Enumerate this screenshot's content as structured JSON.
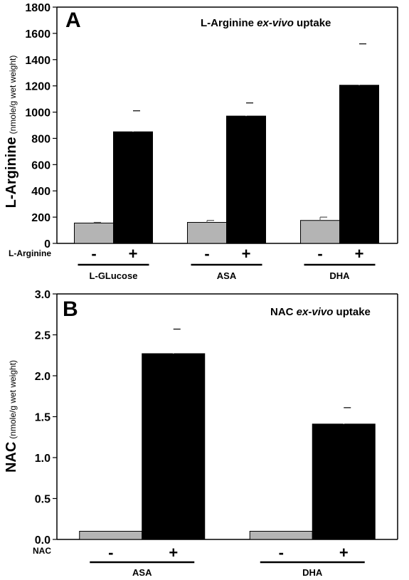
{
  "colors": {
    "control_bar": "#b4b4b4",
    "treated_bar": "#000000",
    "axis": "#000000"
  },
  "chart_data": [
    {
      "type": "bar",
      "panel_label": "A",
      "title_parts": {
        "lead": "L-Arginine ",
        "italic": "ex-vivo",
        "tail": " uptake"
      },
      "ylabel": "L-Arginine",
      "ylabel_unit": "(nmole/g wet weight)",
      "ylim": [
        0,
        1800
      ],
      "yticks": [
        "0",
        "200",
        "400",
        "600",
        "800",
        "1000",
        "1200",
        "1400",
        "1600",
        "1800"
      ],
      "treatment_label": "L-Arginine",
      "signs": [
        "-",
        "+"
      ],
      "categories": [
        "L-GLucose",
        "ASA",
        "DHA"
      ],
      "series": [
        {
          "values": [
            155,
            160,
            175
          ],
          "errors": [
            5,
            15,
            25
          ]
        },
        {
          "values": [
            850,
            970,
            1205
          ],
          "errors": [
            160,
            100,
            315
          ]
        }
      ]
    },
    {
      "type": "bar",
      "panel_label": "B",
      "title_parts": {
        "lead": "NAC ",
        "italic": "ex-vivo",
        "tail": " uptake"
      },
      "ylabel": "NAC",
      "ylabel_unit": "(nmole/g wet weight)",
      "ylim": [
        0,
        3.0
      ],
      "yticks": [
        "0.0",
        "0.5",
        "1.0",
        "1.5",
        "2.0",
        "2.5",
        "3.0"
      ],
      "treatment_label": "NAC",
      "signs": [
        "-",
        "+"
      ],
      "categories": [
        "ASA",
        "DHA"
      ],
      "series": [
        {
          "values": [
            0.1,
            0.1
          ],
          "errors": [
            0,
            0
          ]
        },
        {
          "values": [
            2.27,
            1.41
          ],
          "errors": [
            0.3,
            0.2
          ]
        }
      ]
    }
  ]
}
